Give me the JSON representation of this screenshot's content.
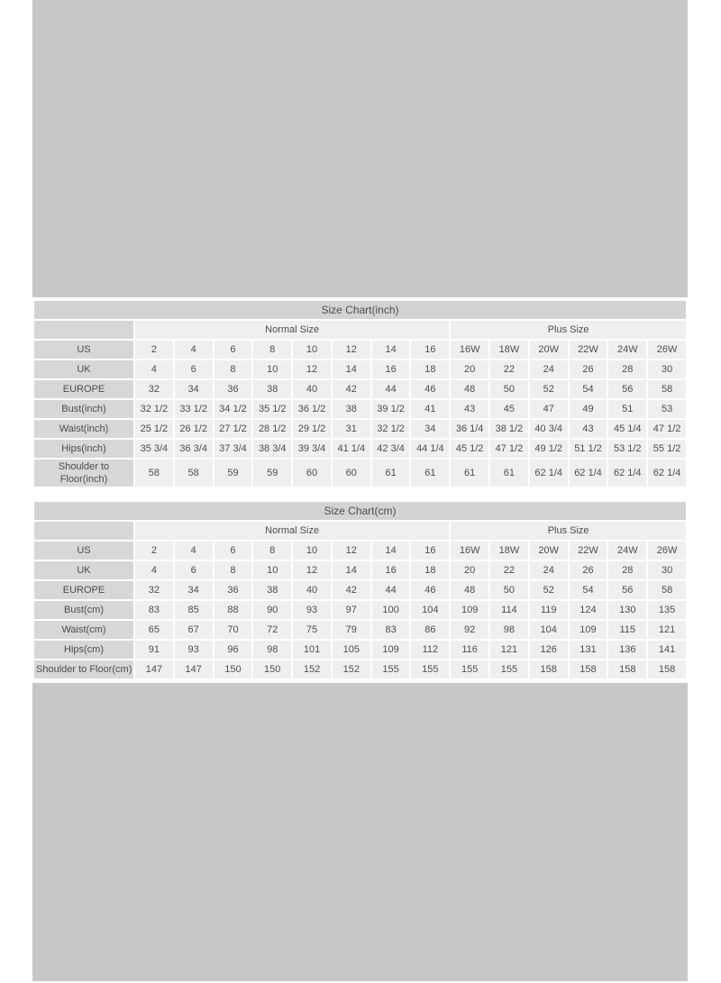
{
  "colors": {
    "page_bg": "#ffffff",
    "placeholder_bg": "#c7c7c7",
    "title_bg": "#d3d3d3",
    "label_bg": "#d7d7d7",
    "cell_bg": "#efefef",
    "text": "#4d4d4d"
  },
  "tables": [
    {
      "title": "Size Chart(inch)",
      "groups": [
        {
          "label": "Normal Size",
          "span": 8
        },
        {
          "label": "Plus Size",
          "span": 6
        }
      ],
      "rows": [
        {
          "label": "US",
          "values": [
            "2",
            "4",
            "6",
            "8",
            "10",
            "12",
            "14",
            "16",
            "16W",
            "18W",
            "20W",
            "22W",
            "24W",
            "26W"
          ]
        },
        {
          "label": "UK",
          "values": [
            "4",
            "6",
            "8",
            "10",
            "12",
            "14",
            "16",
            "18",
            "20",
            "22",
            "24",
            "26",
            "28",
            "30"
          ]
        },
        {
          "label": "EUROPE",
          "values": [
            "32",
            "34",
            "36",
            "38",
            "40",
            "42",
            "44",
            "46",
            "48",
            "50",
            "52",
            "54",
            "56",
            "58"
          ]
        },
        {
          "label": "Bust(inch)",
          "values": [
            "32 1/2",
            "33 1/2",
            "34 1/2",
            "35 1/2",
            "36 1/2",
            "38",
            "39 1/2",
            "41",
            "43",
            "45",
            "47",
            "49",
            "51",
            "53"
          ]
        },
        {
          "label": "Waist(inch)",
          "values": [
            "25 1/2",
            "26 1/2",
            "27 1/2",
            "28 1/2",
            "29 1/2",
            "31",
            "32 1/2",
            "34",
            "36 1/4",
            "38 1/2",
            "40 3/4",
            "43",
            "45 1/4",
            "47 1/2"
          ]
        },
        {
          "label": "Hips(inch)",
          "values": [
            "35 3/4",
            "36 3/4",
            "37 3/4",
            "38 3/4",
            "39 3/4",
            "41 1/4",
            "42 3/4",
            "44 1/4",
            "45 1/2",
            "47 1/2",
            "49 1/2",
            "51 1/2",
            "53 1/2",
            "55 1/2"
          ]
        },
        {
          "label": "Shoulder to\nFloor(inch)",
          "values": [
            "58",
            "58",
            "59",
            "59",
            "60",
            "60",
            "61",
            "61",
            "61",
            "61",
            "62 1/4",
            "62 1/4",
            "62 1/4",
            "62 1/4"
          ]
        }
      ]
    },
    {
      "title": "Size Chart(cm)",
      "groups": [
        {
          "label": "Normal Size",
          "span": 8
        },
        {
          "label": "Plus Size",
          "span": 6
        }
      ],
      "rows": [
        {
          "label": "US",
          "values": [
            "2",
            "4",
            "6",
            "8",
            "10",
            "12",
            "14",
            "16",
            "16W",
            "18W",
            "20W",
            "22W",
            "24W",
            "26W"
          ]
        },
        {
          "label": "UK",
          "values": [
            "4",
            "6",
            "8",
            "10",
            "12",
            "14",
            "16",
            "18",
            "20",
            "22",
            "24",
            "26",
            "28",
            "30"
          ]
        },
        {
          "label": "EUROPE",
          "values": [
            "32",
            "34",
            "36",
            "38",
            "40",
            "42",
            "44",
            "46",
            "48",
            "50",
            "52",
            "54",
            "56",
            "58"
          ]
        },
        {
          "label": "Bust(cm)",
          "values": [
            "83",
            "85",
            "88",
            "90",
            "93",
            "97",
            "100",
            "104",
            "109",
            "114",
            "119",
            "124",
            "130",
            "135"
          ]
        },
        {
          "label": "Waist(cm)",
          "values": [
            "65",
            "67",
            "70",
            "72",
            "75",
            "79",
            "83",
            "86",
            "92",
            "98",
            "104",
            "109",
            "115",
            "121"
          ]
        },
        {
          "label": "Hips(cm)",
          "values": [
            "91",
            "93",
            "96",
            "98",
            "101",
            "105",
            "109",
            "112",
            "116",
            "121",
            "126",
            "131",
            "136",
            "141"
          ]
        },
        {
          "label": "Shoulder to Floor(cm)",
          "values": [
            "147",
            "147",
            "150",
            "150",
            "152",
            "152",
            "155",
            "155",
            "155",
            "155",
            "158",
            "158",
            "158",
            "158"
          ]
        }
      ]
    }
  ]
}
